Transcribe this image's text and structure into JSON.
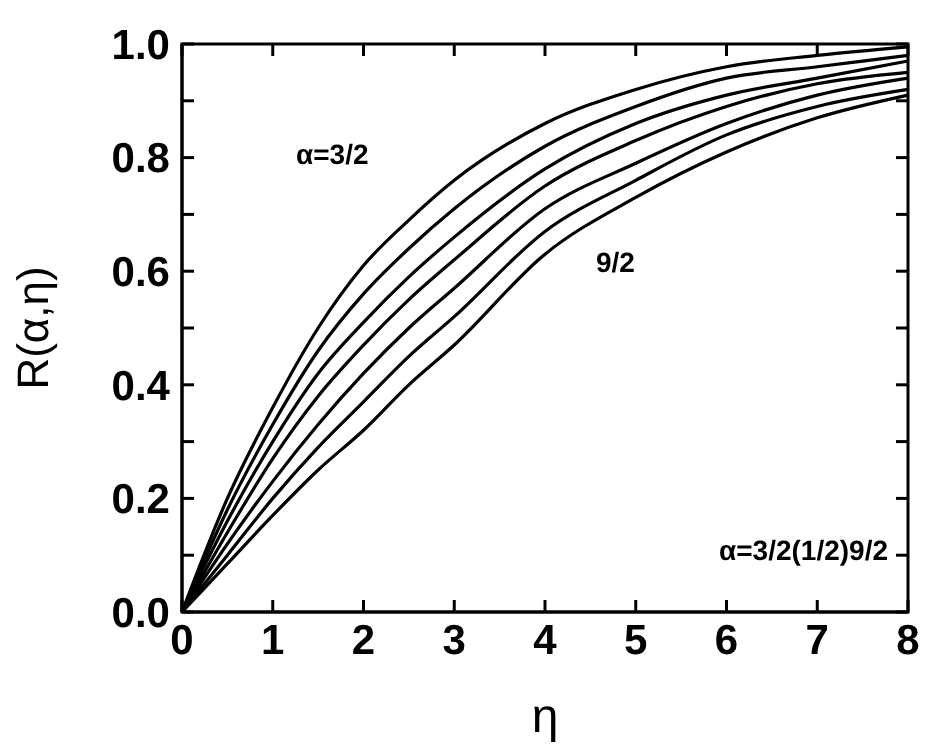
{
  "chart_data": {
    "type": "line",
    "xlabel": "η",
    "ylabel": "R(α,η)",
    "x": [
      0,
      0.5,
      1,
      1.5,
      2,
      2.5,
      3,
      4,
      5,
      6,
      7,
      8
    ],
    "series": [
      {
        "color": "#000000",
        "values": [
          0,
          0.2,
          0.36,
          0.5,
          0.61,
          0.69,
          0.76,
          0.86,
          0.92,
          0.96,
          0.98,
          0.995
        ]
      },
      {
        "color": "#000000",
        "values": [
          0,
          0.18,
          0.33,
          0.46,
          0.56,
          0.64,
          0.71,
          0.82,
          0.89,
          0.94,
          0.96,
          0.98
        ]
      },
      {
        "color": "#000000",
        "values": [
          0,
          0.16,
          0.3,
          0.42,
          0.51,
          0.59,
          0.66,
          0.78,
          0.86,
          0.91,
          0.94,
          0.97
        ]
      },
      {
        "color": "#000000",
        "values": [
          0,
          0.14,
          0.27,
          0.38,
          0.47,
          0.55,
          0.62,
          0.75,
          0.83,
          0.89,
          0.93,
          0.95
        ]
      },
      {
        "color": "#000000",
        "values": [
          0,
          0.12,
          0.23,
          0.33,
          0.42,
          0.5,
          0.57,
          0.71,
          0.79,
          0.86,
          0.91,
          0.94
        ]
      },
      {
        "color": "#000000",
        "values": [
          0,
          0.1,
          0.2,
          0.29,
          0.37,
          0.45,
          0.52,
          0.67,
          0.76,
          0.84,
          0.89,
          0.92
        ]
      },
      {
        "color": "#000000",
        "values": [
          0,
          0.085,
          0.17,
          0.25,
          0.32,
          0.4,
          0.47,
          0.63,
          0.73,
          0.81,
          0.87,
          0.91
        ]
      }
    ],
    "xlim": [
      0,
      8
    ],
    "xticks": [
      0,
      1,
      2,
      3,
      4,
      5,
      6,
      7,
      8
    ],
    "ylim": [
      0,
      1
    ],
    "yticks": [
      {
        "value": 0,
        "label": "0.0"
      },
      {
        "value": 0.1,
        "label": null
      },
      {
        "value": 0.2,
        "label": "0.2"
      },
      {
        "value": 0.3,
        "label": null
      },
      {
        "value": 0.4,
        "label": "0.4"
      },
      {
        "value": 0.5,
        "label": null
      },
      {
        "value": 0.6,
        "label": "0.6"
      },
      {
        "value": 0.7,
        "label": null
      },
      {
        "value": 0.8,
        "label": "0.8"
      },
      {
        "value": 0.9,
        "label": null
      },
      {
        "value": 1,
        "label": "1.0"
      }
    ],
    "annotations": [
      "α=3/2",
      "9/2",
      "α=3/2(1/2)9/2"
    ],
    "grid": false,
    "marker": "none",
    "line_style": "solid"
  }
}
